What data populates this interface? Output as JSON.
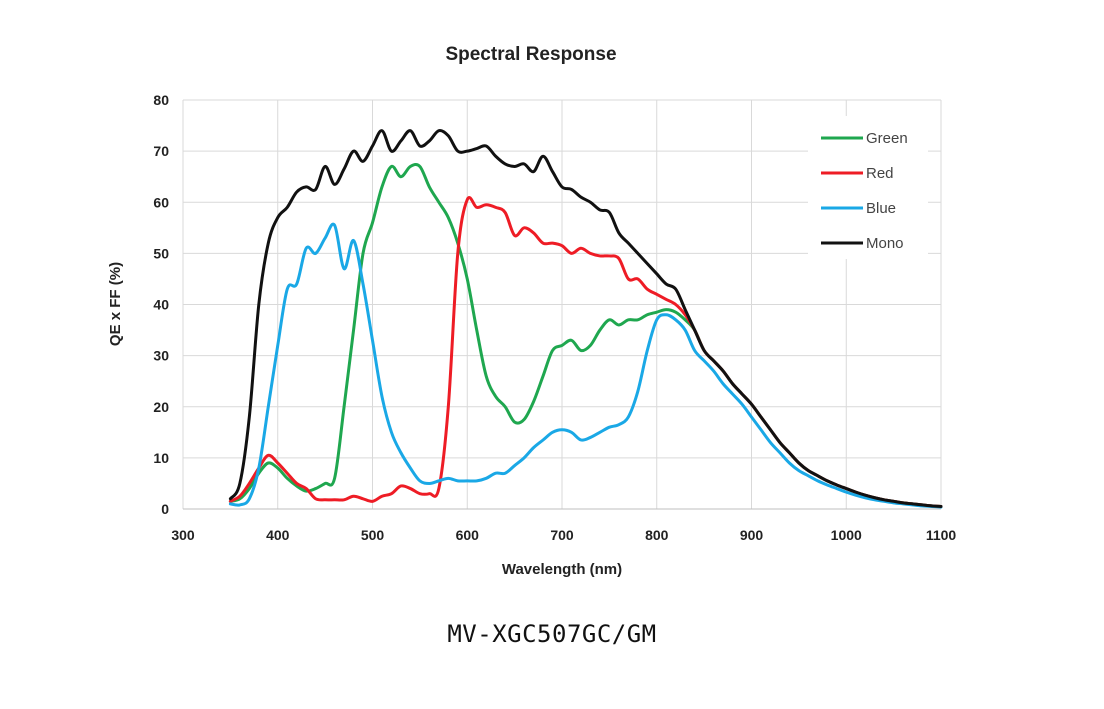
{
  "chart_data": {
    "type": "line",
    "title": "Spectral Response",
    "xlabel": "Wavelength (nm)",
    "ylabel": "QE x FF (%)",
    "xlim": [
      300,
      1100
    ],
    "ylim": [
      0,
      80
    ],
    "xticks": [
      300,
      400,
      500,
      600,
      700,
      800,
      900,
      1000,
      1100
    ],
    "yticks": [
      0,
      10,
      20,
      30,
      40,
      50,
      60,
      70,
      80
    ],
    "grid": true,
    "legend_position": "top-right",
    "series": [
      {
        "name": "Green",
        "color": "#1fa74f",
        "x": [
          350,
          360,
          370,
          380,
          390,
          400,
          410,
          420,
          430,
          440,
          450,
          460,
          470,
          480,
          490,
          500,
          510,
          520,
          530,
          540,
          550,
          560,
          570,
          580,
          590,
          600,
          610,
          620,
          630,
          640,
          650,
          660,
          670,
          680,
          690,
          700,
          710,
          720,
          730,
          740,
          750,
          760,
          770,
          780,
          790,
          800,
          810,
          820,
          830,
          840,
          850,
          860,
          870,
          880,
          890,
          900,
          910,
          920,
          930,
          940,
          950,
          960,
          970,
          980,
          990,
          1000,
          1010,
          1020,
          1030,
          1040,
          1050,
          1060,
          1070,
          1080,
          1090,
          1100
        ],
        "y": [
          1.5,
          2,
          4,
          7,
          9,
          8,
          6,
          4.5,
          3.5,
          4,
          5,
          6,
          20,
          35,
          50,
          56,
          63,
          67,
          65,
          67,
          67,
          63,
          60,
          57,
          52,
          45,
          35,
          26,
          22,
          20,
          17,
          17.5,
          21,
          26,
          31,
          32,
          33,
          31,
          32,
          35,
          37,
          36,
          37,
          37,
          38,
          38.5,
          39,
          38.5,
          37,
          35,
          31,
          29,
          27,
          24.5,
          22.5,
          20.5,
          18,
          15.5,
          13,
          11,
          9,
          7.5,
          6.5,
          5.5,
          4.7,
          4,
          3.3,
          2.7,
          2.2,
          1.8,
          1.5,
          1.2,
          1,
          0.8,
          0.6,
          0.5
        ]
      },
      {
        "name": "Red",
        "color": "#ee1c25",
        "x": [
          350,
          360,
          370,
          380,
          390,
          400,
          410,
          420,
          430,
          440,
          450,
          460,
          470,
          480,
          490,
          500,
          510,
          520,
          530,
          540,
          550,
          560,
          570,
          580,
          590,
          600,
          610,
          620,
          630,
          640,
          650,
          660,
          670,
          680,
          690,
          700,
          710,
          720,
          730,
          740,
          750,
          760,
          770,
          780,
          790,
          800,
          810,
          820,
          830,
          840,
          850,
          860,
          870,
          880,
          890,
          900,
          910,
          920,
          930,
          940,
          950,
          960,
          970,
          980,
          990,
          1000,
          1010,
          1020,
          1030,
          1040,
          1050,
          1060,
          1070,
          1080,
          1090,
          1100
        ],
        "y": [
          1.5,
          2.5,
          5,
          8,
          10.5,
          9,
          7,
          5,
          4,
          2,
          1.8,
          1.8,
          1.8,
          2.5,
          2,
          1.5,
          2.5,
          3,
          4.5,
          4,
          3,
          3,
          4,
          20,
          50,
          60.5,
          59,
          59.5,
          59,
          58,
          53.5,
          55,
          54,
          52,
          52,
          51.5,
          50,
          51,
          50,
          49.5,
          49.5,
          49,
          45,
          45,
          43,
          42,
          41,
          40,
          38,
          35,
          31,
          29,
          27,
          24.5,
          22.5,
          20.5,
          18,
          15.5,
          13,
          11,
          9,
          7.5,
          6.5,
          5.5,
          4.7,
          4,
          3.3,
          2.7,
          2.2,
          1.8,
          1.5,
          1.2,
          1,
          0.8,
          0.6,
          0.5
        ]
      },
      {
        "name": "Blue",
        "color": "#1aa8e6",
        "x": [
          350,
          360,
          370,
          380,
          390,
          400,
          410,
          420,
          430,
          440,
          450,
          460,
          470,
          480,
          490,
          500,
          510,
          520,
          530,
          540,
          550,
          560,
          570,
          580,
          590,
          600,
          610,
          620,
          630,
          640,
          650,
          660,
          670,
          680,
          690,
          700,
          710,
          720,
          730,
          740,
          750,
          760,
          770,
          780,
          790,
          800,
          810,
          820,
          830,
          840,
          850,
          860,
          870,
          880,
          890,
          900,
          910,
          920,
          930,
          940,
          950,
          960,
          970,
          980,
          990,
          1000,
          1010,
          1020,
          1030,
          1040,
          1050,
          1060,
          1070,
          1080,
          1090,
          1100
        ],
        "y": [
          1,
          0.8,
          2,
          8,
          20,
          32,
          43,
          44,
          51,
          50,
          53,
          55.5,
          47,
          52.5,
          44,
          33,
          22,
          15,
          11,
          8,
          5.5,
          5,
          5.5,
          6,
          5.5,
          5.5,
          5.5,
          6,
          7,
          7,
          8.5,
          10,
          12,
          13.5,
          15,
          15.5,
          15,
          13.5,
          14,
          15,
          16,
          16.5,
          18,
          23,
          31,
          37,
          38,
          37,
          35,
          31,
          29,
          27,
          24.5,
          22.5,
          20.5,
          18,
          15.5,
          13,
          11,
          9,
          7.5,
          6.5,
          5.5,
          4.7,
          4,
          3.3,
          2.7,
          2.2,
          1.8,
          1.5,
          1.2,
          1,
          0.8,
          0.6,
          0.5,
          0.4
        ]
      },
      {
        "name": "Mono",
        "color": "#111111",
        "x": [
          350,
          360,
          370,
          380,
          390,
          400,
          410,
          420,
          430,
          440,
          450,
          460,
          470,
          480,
          490,
          500,
          510,
          520,
          530,
          540,
          550,
          560,
          570,
          580,
          590,
          600,
          610,
          620,
          630,
          640,
          650,
          660,
          670,
          680,
          690,
          700,
          710,
          720,
          730,
          740,
          750,
          760,
          770,
          780,
          790,
          800,
          810,
          820,
          830,
          840,
          850,
          860,
          870,
          880,
          890,
          900,
          910,
          920,
          930,
          940,
          950,
          960,
          970,
          980,
          990,
          1000,
          1010,
          1020,
          1030,
          1040,
          1050,
          1060,
          1070,
          1080,
          1090,
          1100
        ],
        "y": [
          2,
          5,
          18,
          40,
          52,
          57,
          59,
          62,
          63,
          62.5,
          67,
          63.5,
          66.5,
          70,
          68,
          71,
          74,
          70,
          72,
          74,
          71,
          72,
          74,
          73,
          70,
          70,
          70.5,
          71,
          69,
          67.5,
          67,
          67.5,
          66,
          69,
          66,
          63,
          62.5,
          61,
          60,
          58.5,
          58,
          54,
          52,
          50,
          48,
          46,
          44,
          43,
          39,
          35,
          31,
          29,
          27,
          24.5,
          22.5,
          20.5,
          18,
          15.5,
          13,
          11,
          9,
          7.5,
          6.5,
          5.5,
          4.7,
          4,
          3.3,
          2.7,
          2.2,
          1.8,
          1.5,
          1.2,
          1,
          0.8,
          0.6,
          0.5
        ]
      }
    ]
  },
  "caption": "MV-XGC507GC/GM"
}
